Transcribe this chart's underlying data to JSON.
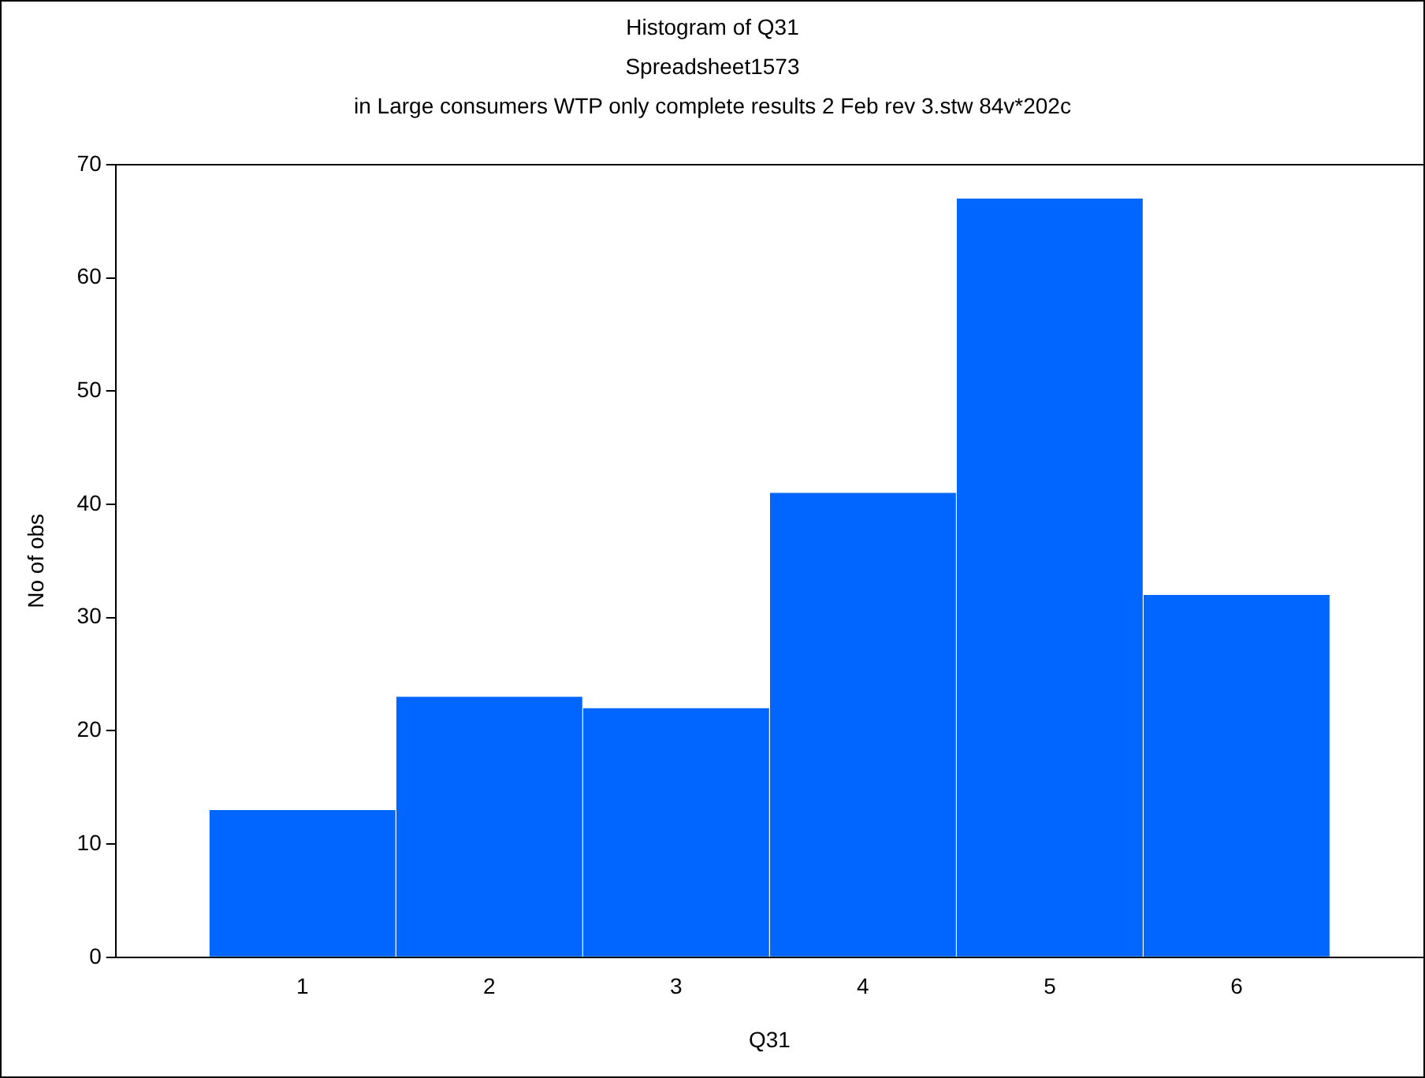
{
  "chart_data": {
    "type": "histogram",
    "title": "Histogram of Q31",
    "subtitle": "Spreadsheet1573",
    "annotations": [
      "in Large consumers WTP only complete results 2 Feb rev 3.stw 84v*202c"
    ],
    "xlabel": "Q31",
    "ylabel": "No of obs",
    "bins": [
      0.5,
      1.5,
      2.5,
      3.5,
      4.5,
      5.5,
      6.5
    ],
    "values": [
      13,
      23,
      22,
      41,
      67,
      32
    ],
    "color": "#0066ff",
    "xlim": [
      0,
      7
    ],
    "xticks": [
      1,
      2,
      3,
      4,
      5,
      6
    ],
    "ylim": [
      0,
      70
    ],
    "yticks": [
      0,
      10,
      20,
      30,
      40,
      50,
      60,
      70
    ],
    "grid": false,
    "legend": false
  }
}
